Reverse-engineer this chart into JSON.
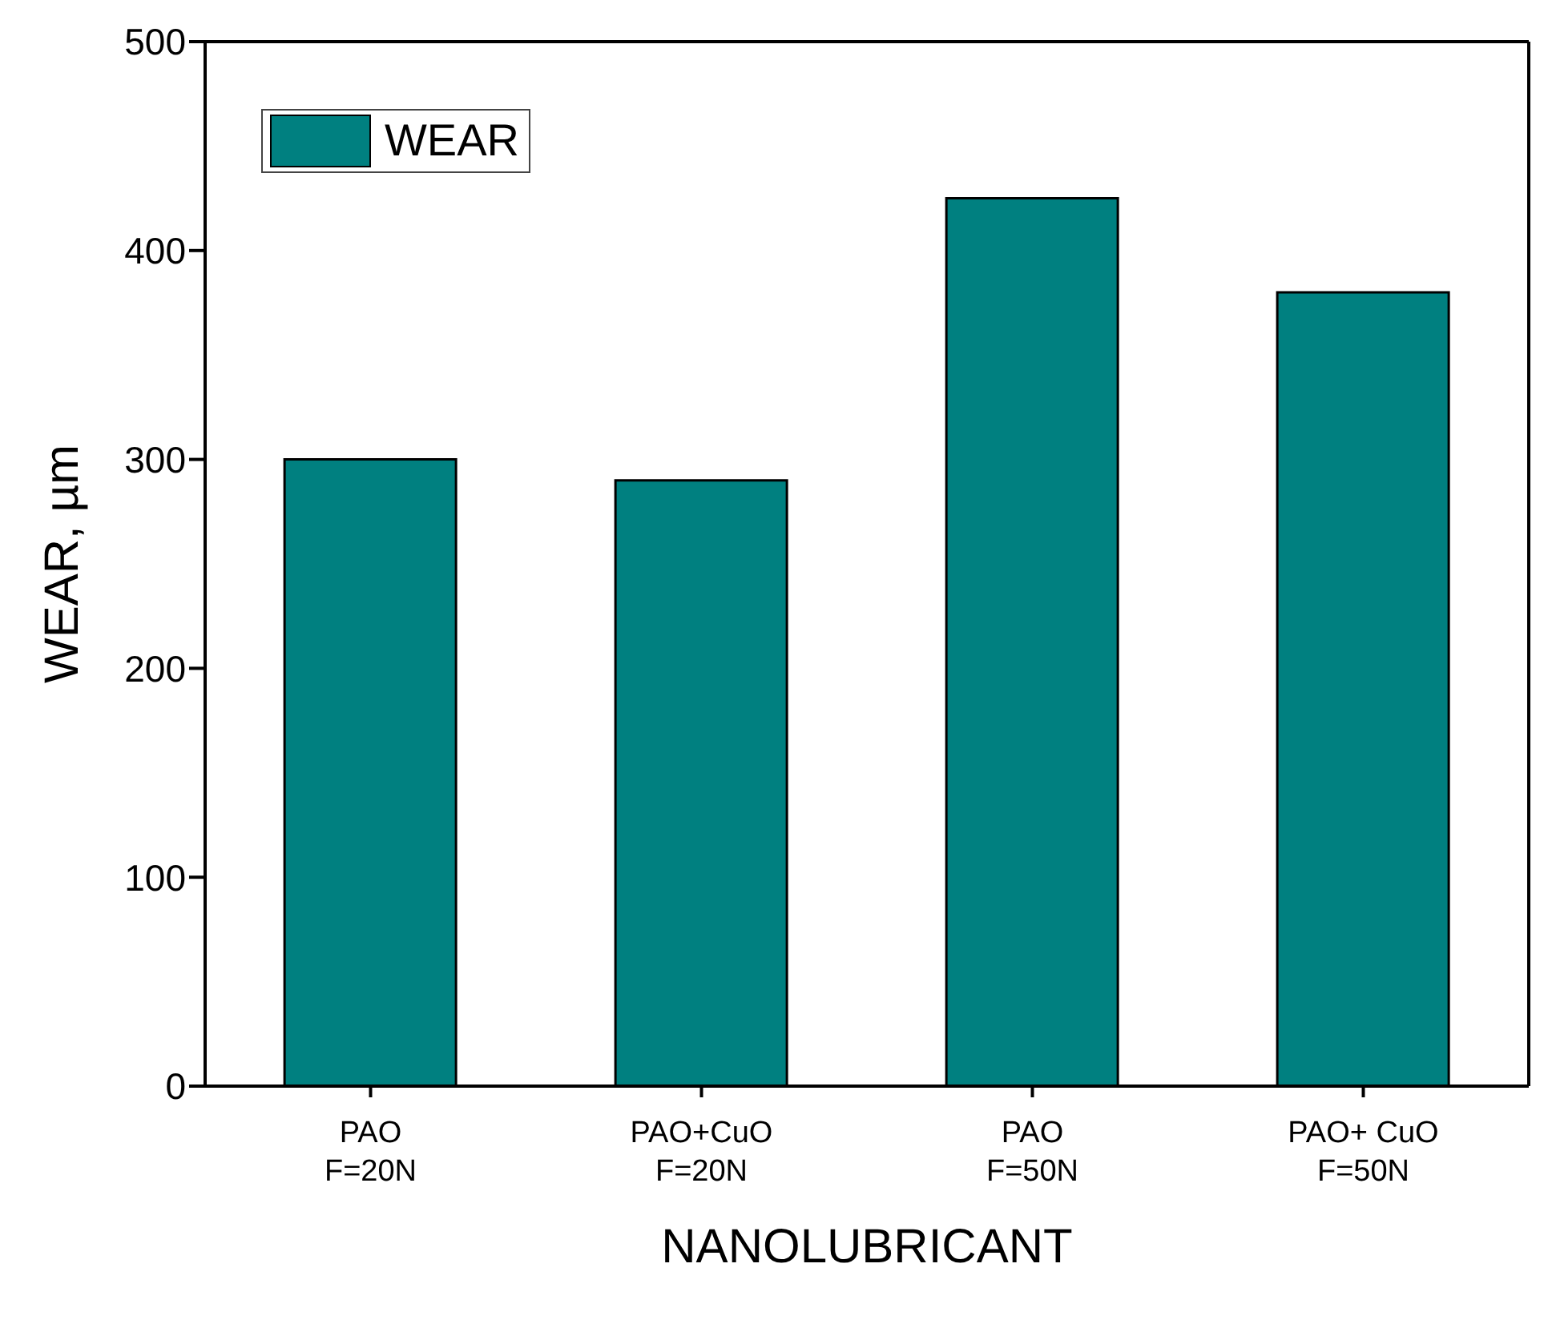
{
  "chart_data": {
    "type": "bar",
    "xlabel": "NANOLUBRICANT",
    "ylabel": "WEAR, µm",
    "categories": [
      "PAO\nF=20N",
      "PAO+CuO\nF=20N",
      "PAO\nF=50N",
      "PAO+ CuO\nF=50N"
    ],
    "series": [
      {
        "name": "WEAR",
        "color": "#008080",
        "values": [
          300,
          290,
          425,
          380
        ]
      }
    ],
    "ylim": [
      0,
      500
    ],
    "yticks": [
      0,
      100,
      200,
      300,
      400,
      500
    ],
    "grid": false,
    "legend": "top left"
  }
}
